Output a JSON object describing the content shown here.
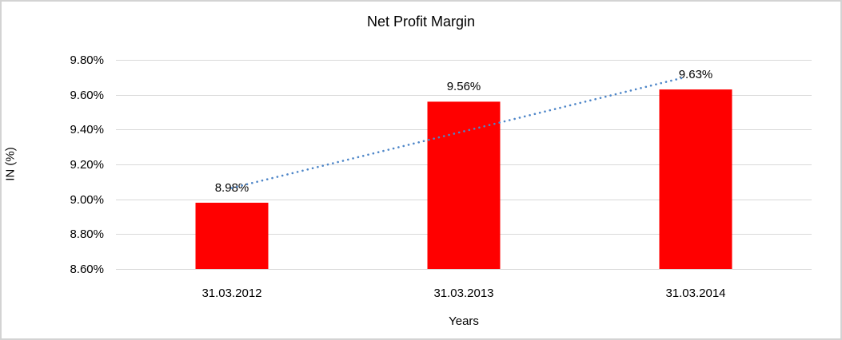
{
  "chart": {
    "title": "Net Profit Margin",
    "xlabel": "Years",
    "ylabel": "IN (%)"
  },
  "chart_data": {
    "type": "bar",
    "title": "Net Profit Margin",
    "xlabel": "Years",
    "ylabel": "IN (%)",
    "categories": [
      "31.03.2012",
      "31.03.2013",
      "31.03.2014"
    ],
    "series": [
      {
        "name": "Net Profit Margin",
        "values": [
          8.98,
          9.56,
          9.63
        ],
        "data_labels": [
          "8.98%",
          "9.56%",
          "9.63%"
        ],
        "color": "#ff0000"
      }
    ],
    "trendline": {
      "type": "linear",
      "style": "dotted",
      "color": "#4e86c8"
    },
    "ylim": [
      8.6,
      9.8
    ],
    "ytick_step": 0.2,
    "ytick_labels": [
      "9.80%",
      "9.60%",
      "9.40%",
      "9.20%",
      "9.00%",
      "8.80%",
      "8.60%"
    ],
    "grid": true,
    "gridline_color": "#d9d9d9",
    "border_color": "#d3d3d3",
    "legend_position": "none"
  }
}
